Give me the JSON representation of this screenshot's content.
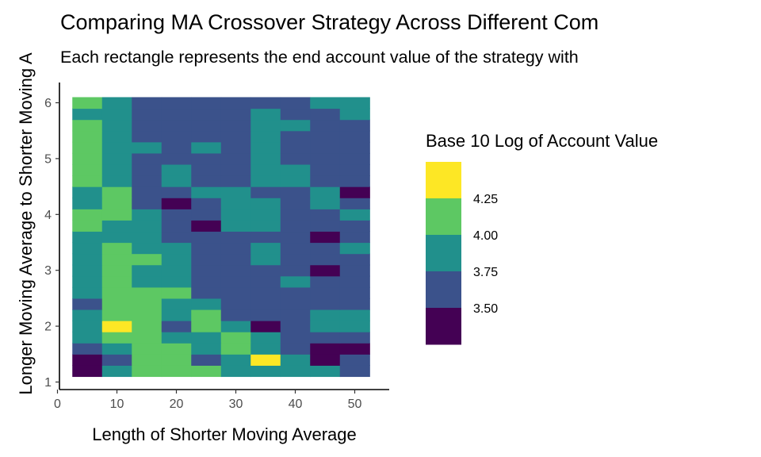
{
  "chart_data": {
    "type": "heatmap",
    "title": "Comparing MA Crossover Strategy Across Different Com",
    "subtitle": "Each rectangle represents the end account value of the strategy with",
    "xlabel": "Length of Shorter Moving Average",
    "ylabel": "Longer Moving Average to Shorter Moving A",
    "x_ticks": [
      0,
      10,
      20,
      30,
      40,
      50
    ],
    "y_ticks": [
      1,
      2,
      3,
      4,
      5,
      6
    ],
    "xlim": [
      0,
      55
    ],
    "ylim": [
      1,
      6.3
    ],
    "x_values": [
      5,
      10,
      15,
      20,
      25,
      30,
      35,
      40,
      45,
      50
    ],
    "y_values": [
      1.2,
      1.4,
      1.6,
      1.8,
      2.0,
      2.2,
      2.4,
      2.6,
      2.8,
      3.0,
      3.2,
      3.4,
      3.6,
      3.8,
      4.0,
      4.2,
      4.4,
      4.6,
      4.8,
      5.0,
      5.2,
      5.4,
      5.6,
      5.8,
      6.0
    ],
    "legend": {
      "title": "Base 10 Log of Account Value",
      "breaks": [
        4.25,
        4.0,
        3.75,
        3.5
      ],
      "colors": [
        "#FDE725",
        "#5DC863",
        "#21908C",
        "#3B528B",
        "#440154"
      ],
      "placement": "right"
    },
    "bin_edges": [
      3.5,
      3.75,
      4.0,
      4.25
    ],
    "values": [
      [
        3.4,
        3.8,
        4.1,
        4.1,
        4.1,
        3.8,
        3.8,
        3.8,
        3.8,
        3.6
      ],
      [
        3.4,
        3.6,
        4.1,
        4.1,
        3.6,
        3.8,
        4.3,
        3.8,
        3.4,
        3.6
      ],
      [
        3.6,
        3.8,
        4.1,
        4.1,
        3.8,
        4.1,
        3.8,
        3.6,
        3.4,
        3.4
      ],
      [
        3.8,
        4.1,
        4.1,
        3.8,
        3.8,
        4.1,
        3.8,
        3.6,
        3.6,
        3.6
      ],
      [
        3.8,
        4.3,
        4.1,
        3.6,
        4.1,
        3.8,
        3.4,
        3.6,
        3.8,
        3.8
      ],
      [
        3.8,
        4.1,
        4.1,
        3.8,
        4.1,
        3.6,
        3.6,
        3.6,
        3.8,
        3.8
      ],
      [
        3.6,
        4.1,
        4.1,
        3.8,
        3.8,
        3.6,
        3.6,
        3.6,
        3.6,
        3.6
      ],
      [
        3.8,
        4.1,
        4.1,
        4.1,
        3.6,
        3.6,
        3.6,
        3.6,
        3.6,
        3.6
      ],
      [
        3.8,
        4.1,
        3.8,
        3.8,
        3.6,
        3.6,
        3.6,
        3.8,
        3.6,
        3.6
      ],
      [
        3.8,
        4.1,
        3.8,
        3.8,
        3.6,
        3.6,
        3.6,
        3.6,
        3.4,
        3.6
      ],
      [
        3.8,
        4.1,
        4.1,
        3.8,
        3.6,
        3.6,
        3.8,
        3.6,
        3.6,
        3.6
      ],
      [
        3.8,
        4.1,
        3.8,
        3.8,
        3.6,
        3.6,
        3.8,
        3.6,
        3.6,
        3.8
      ],
      [
        3.8,
        3.8,
        3.8,
        3.6,
        3.6,
        3.6,
        3.6,
        3.6,
        3.4,
        3.6
      ],
      [
        4.1,
        3.8,
        3.8,
        3.6,
        3.4,
        3.8,
        3.8,
        3.6,
        3.6,
        3.6
      ],
      [
        4.1,
        4.1,
        3.8,
        3.6,
        3.6,
        3.8,
        3.8,
        3.6,
        3.6,
        3.8
      ],
      [
        3.8,
        4.1,
        3.6,
        3.4,
        3.6,
        3.8,
        3.8,
        3.6,
        3.8,
        3.6
      ],
      [
        3.8,
        4.1,
        3.6,
        3.6,
        3.8,
        3.8,
        3.6,
        3.6,
        3.8,
        3.4
      ],
      [
        4.1,
        3.8,
        3.6,
        3.8,
        3.6,
        3.6,
        3.8,
        3.8,
        3.6,
        3.6
      ],
      [
        4.1,
        3.8,
        3.6,
        3.8,
        3.6,
        3.6,
        3.8,
        3.8,
        3.6,
        3.6
      ],
      [
        4.1,
        3.8,
        3.6,
        3.6,
        3.6,
        3.6,
        3.8,
        3.6,
        3.6,
        3.6
      ],
      [
        4.1,
        3.8,
        3.8,
        3.6,
        3.8,
        3.6,
        3.8,
        3.6,
        3.6,
        3.6
      ],
      [
        4.1,
        3.8,
        3.6,
        3.6,
        3.6,
        3.6,
        3.8,
        3.6,
        3.6,
        3.6
      ],
      [
        4.1,
        3.8,
        3.6,
        3.6,
        3.6,
        3.6,
        3.8,
        3.8,
        3.6,
        3.6
      ],
      [
        3.8,
        3.8,
        3.6,
        3.6,
        3.6,
        3.6,
        3.8,
        3.6,
        3.6,
        3.8
      ],
      [
        4.1,
        3.8,
        3.6,
        3.6,
        3.6,
        3.6,
        3.6,
        3.6,
        3.8,
        3.8
      ]
    ]
  }
}
